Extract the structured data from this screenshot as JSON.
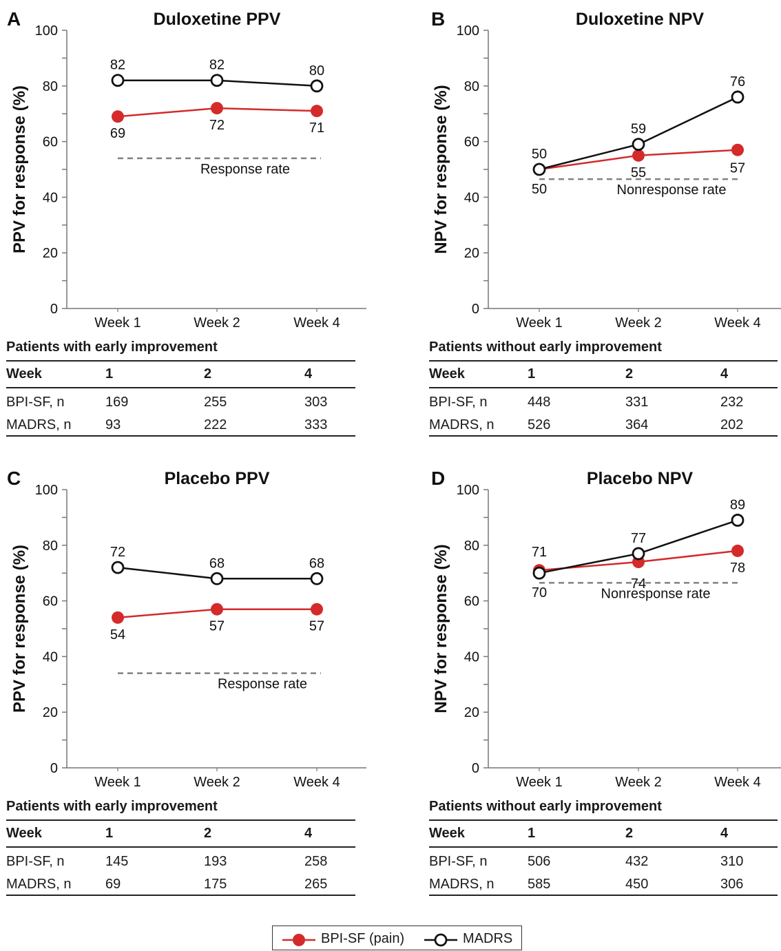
{
  "series_style": {
    "BPI-SF (pain)": {
      "color": "#d42a2a",
      "marker": "filled-circle"
    },
    "MADRS": {
      "color": "#111111",
      "marker": "open-circle"
    }
  },
  "chart_data": [
    {
      "letter": "A",
      "type": "line",
      "title": "Duloxetine PPV",
      "ylabel": "PPV for response (%)",
      "categories": [
        "Week 1",
        "Week 2",
        "Week 4"
      ],
      "ylim": [
        0,
        100
      ],
      "yticks": [
        0,
        20,
        40,
        60,
        80,
        100
      ],
      "series": [
        {
          "name": "MADRS",
          "values": [
            82,
            82,
            80
          ],
          "labels": [
            "82",
            "82",
            "80"
          ]
        },
        {
          "name": "BPI-SF (pain)",
          "values": [
            69,
            72,
            71
          ],
          "labels": [
            "69",
            "72",
            "71"
          ]
        }
      ],
      "reference_line": {
        "value": 54,
        "label": "Response rate"
      },
      "table": {
        "title": "Patients with early improvement",
        "header": [
          "Week",
          "1",
          "2",
          "4"
        ],
        "rows": [
          [
            "BPI-SF, n",
            "169",
            "255",
            "303"
          ],
          [
            "MADRS, n",
            "93",
            "222",
            "333"
          ]
        ]
      }
    },
    {
      "letter": "B",
      "type": "line",
      "title": "Duloxetine NPV",
      "ylabel": "NPV for response (%)",
      "categories": [
        "Week 1",
        "Week 2",
        "Week 4"
      ],
      "ylim": [
        0,
        100
      ],
      "yticks": [
        0,
        20,
        40,
        60,
        80,
        100
      ],
      "series": [
        {
          "name": "MADRS",
          "values": [
            50,
            59,
            76
          ],
          "labels": [
            "50",
            "59",
            "76"
          ]
        },
        {
          "name": "BPI-SF (pain)",
          "values": [
            50,
            55,
            57
          ],
          "labels": [
            "50",
            "55",
            "57"
          ]
        }
      ],
      "reference_line": {
        "value": 46.5,
        "label": "Nonresponse rate"
      },
      "table": {
        "title": "Patients without early improvement",
        "header": [
          "Week",
          "1",
          "2",
          "4"
        ],
        "rows": [
          [
            "BPI-SF, n",
            "448",
            "331",
            "232"
          ],
          [
            "MADRS, n",
            "526",
            "364",
            "202"
          ]
        ]
      }
    },
    {
      "letter": "C",
      "type": "line",
      "title": "Placebo PPV",
      "ylabel": "PPV for response (%)",
      "categories": [
        "Week 1",
        "Week 2",
        "Week 4"
      ],
      "ylim": [
        0,
        100
      ],
      "yticks": [
        0,
        20,
        40,
        60,
        80,
        100
      ],
      "series": [
        {
          "name": "MADRS",
          "values": [
            72,
            68,
            68
          ],
          "labels": [
            "72",
            "68",
            "68"
          ]
        },
        {
          "name": "BPI-SF (pain)",
          "values": [
            54,
            57,
            57
          ],
          "labels": [
            "54",
            "57",
            "57"
          ]
        }
      ],
      "reference_line": {
        "value": 34,
        "label": "Response rate"
      },
      "table": {
        "title": "Patients with early improvement",
        "header": [
          "Week",
          "1",
          "2",
          "4"
        ],
        "rows": [
          [
            "BPI-SF, n",
            "145",
            "193",
            "258"
          ],
          [
            "MADRS, n",
            "69",
            "175",
            "265"
          ]
        ]
      }
    },
    {
      "letter": "D",
      "type": "line",
      "title": "Placebo NPV",
      "ylabel": "NPV for response (%)",
      "categories": [
        "Week 1",
        "Week 2",
        "Week 4"
      ],
      "ylim": [
        0,
        100
      ],
      "yticks": [
        0,
        20,
        40,
        60,
        80,
        100
      ],
      "series": [
        {
          "name": "MADRS",
          "values": [
            70,
            77,
            89
          ],
          "labels": [
            "70",
            "77",
            "89"
          ]
        },
        {
          "name": "BPI-SF (pain)",
          "values": [
            71,
            74,
            78
          ],
          "labels": [
            "71",
            "74",
            "78"
          ]
        }
      ],
      "reference_line": {
        "value": 66.5,
        "label": "Nonresponse rate"
      },
      "table": {
        "title": "Patients without early improvement",
        "header": [
          "Week",
          "1",
          "2",
          "4"
        ],
        "rows": [
          [
            "BPI-SF, n",
            "506",
            "432",
            "310"
          ],
          [
            "MADRS, n",
            "585",
            "450",
            "306"
          ]
        ]
      }
    }
  ],
  "legend": {
    "items": [
      {
        "name": "BPI-SF (pain)"
      },
      {
        "name": "MADRS"
      }
    ]
  }
}
